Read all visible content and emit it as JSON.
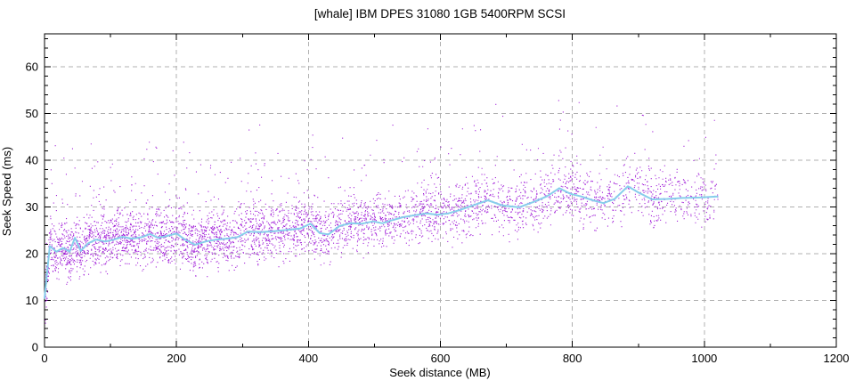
{
  "chart_data": {
    "type": "scatter",
    "title": "[whale] IBM DPES 31080 1GB 5400RPM SCSI",
    "xlabel": "Seek distance (MB)",
    "ylabel": "Seek Speed (ms)",
    "xlim": [
      0,
      1200
    ],
    "ylim": [
      0,
      67
    ],
    "x_major_ticks": [
      0,
      200,
      400,
      600,
      800,
      1000,
      1200
    ],
    "x_minor_step": 100,
    "y_major_ticks": [
      0,
      10,
      20,
      30,
      40,
      50,
      60
    ],
    "y_minor_step": 2,
    "grid": {
      "show": true,
      "style": "dashed",
      "color": "#b0b0b0"
    },
    "frame_color": "#000000",
    "background": "#ffffff",
    "legend": "none",
    "series": [
      {
        "name": "seek-samples",
        "type": "scatter",
        "color": "#9400d3",
        "marker": "pixel-dot",
        "point_count": 4600,
        "x_range": [
          0,
          1020
        ],
        "y_observed_range": [
          4,
          60.5
        ],
        "distribution": {
          "seed": 20051,
          "density_falloff": 0.68,
          "spread_ms": 8.5,
          "tail_prob": 0.13,
          "tail_ms": 22,
          "floor_offset_ms": 12,
          "y_min": 4,
          "y_max": 60.5
        }
      },
      {
        "name": "average-seek-speed",
        "type": "line",
        "color": "#87ceeb",
        "width": 2,
        "points": [
          [
            0,
            10.5
          ],
          [
            8,
            21.6
          ],
          [
            18,
            20.4
          ],
          [
            28,
            21.2
          ],
          [
            38,
            20.4
          ],
          [
            46,
            23.4
          ],
          [
            55,
            20.6
          ],
          [
            66,
            22.2
          ],
          [
            78,
            23.0
          ],
          [
            92,
            22.6
          ],
          [
            105,
            23.0
          ],
          [
            118,
            23.6
          ],
          [
            132,
            23.2
          ],
          [
            147,
            23.5
          ],
          [
            160,
            24.2
          ],
          [
            172,
            23.4
          ],
          [
            186,
            23.8
          ],
          [
            200,
            24.3
          ],
          [
            213,
            23.0
          ],
          [
            228,
            21.9
          ],
          [
            244,
            22.6
          ],
          [
            260,
            23.0
          ],
          [
            276,
            23.2
          ],
          [
            292,
            23.5
          ],
          [
            308,
            24.7
          ],
          [
            328,
            24.6
          ],
          [
            348,
            24.8
          ],
          [
            370,
            25.1
          ],
          [
            388,
            25.4
          ],
          [
            403,
            26.4
          ],
          [
            417,
            24.4
          ],
          [
            430,
            24.1
          ],
          [
            447,
            25.9
          ],
          [
            464,
            26.5
          ],
          [
            481,
            26.4
          ],
          [
            498,
            26.9
          ],
          [
            512,
            26.5
          ],
          [
            528,
            27.2
          ],
          [
            544,
            27.8
          ],
          [
            561,
            28.2
          ],
          [
            579,
            28.6
          ],
          [
            596,
            28.3
          ],
          [
            612,
            28.6
          ],
          [
            629,
            29.3
          ],
          [
            647,
            30.2
          ],
          [
            672,
            31.4
          ],
          [
            694,
            30.3
          ],
          [
            719,
            29.9
          ],
          [
            744,
            31.2
          ],
          [
            762,
            32.3
          ],
          [
            780,
            34.0
          ],
          [
            797,
            32.8
          ],
          [
            814,
            32.2
          ],
          [
            831,
            31.4
          ],
          [
            847,
            30.8
          ],
          [
            864,
            31.7
          ],
          [
            884,
            34.4
          ],
          [
            901,
            33.0
          ],
          [
            921,
            31.6
          ],
          [
            944,
            31.7
          ],
          [
            967,
            31.9
          ],
          [
            993,
            32.0
          ],
          [
            1020,
            32.2
          ]
        ]
      }
    ]
  }
}
